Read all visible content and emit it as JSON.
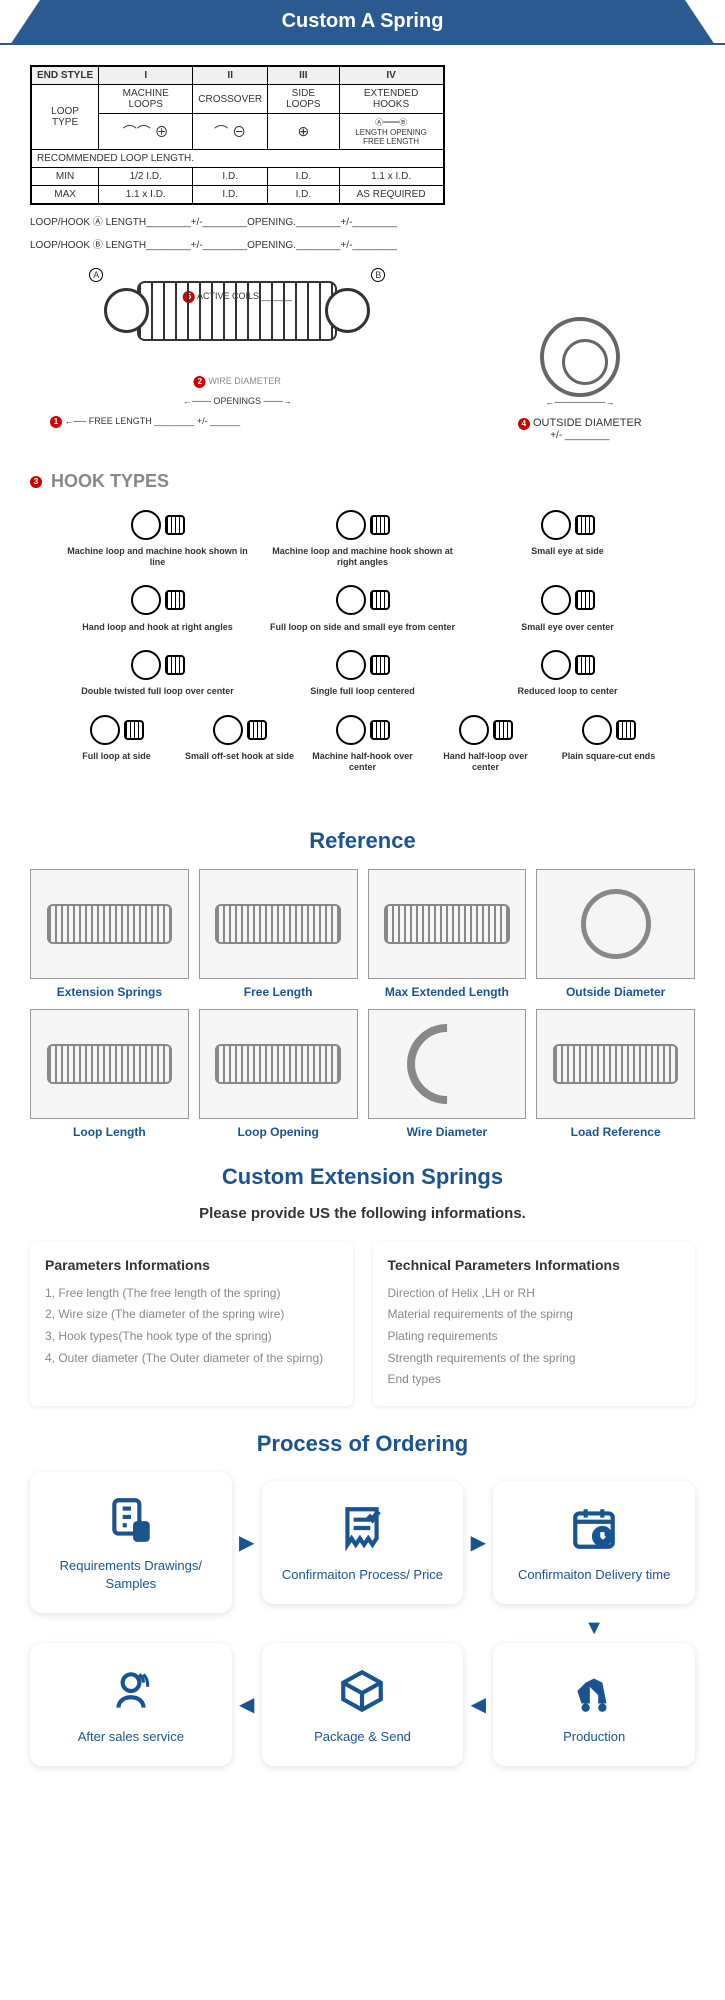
{
  "banner": {
    "title": "Custom A Spring"
  },
  "specTable": {
    "headers": [
      "END STYLE",
      "I",
      "II",
      "III",
      "IV"
    ],
    "subheaders": [
      "",
      "MACHINE LOOPS",
      "CROSSOVER",
      "SIDE LOOPS",
      "EXTENDED HOOKS"
    ],
    "loopType": "LOOP TYPE",
    "recommended": "RECOMMENDED LOOP LENGTH.",
    "rows": [
      [
        "MIN",
        "1/2 I.D.",
        "I.D.",
        "I.D.",
        "1.1 x I.D."
      ],
      [
        "MAX",
        "1.1 x I.D.",
        "I.D.",
        "I.D.",
        "AS REQUIRED"
      ]
    ],
    "extendedLabels": [
      "LENGTH",
      "OPENING",
      "FREE LENGTH"
    ]
  },
  "hookLines": [
    "LOOP/HOOK Ⓐ LENGTH________+/-________OPENING.________+/-________",
    "LOOP/HOOK Ⓑ LENGTH________+/-________OPENING.________+/-________"
  ],
  "diagram": {
    "activeCoils": "ACTIVE COILS ______",
    "wireDiameter": "WIRE DIAMETER",
    "openings": "OPENINGS",
    "freeLength": "FREE LENGTH ________ +/- ______",
    "a": "A",
    "b": "B"
  },
  "outsideDiameter": {
    "label": "OUTSIDE DIAMETER",
    "sublabel": "+/- ________",
    "num": "4"
  },
  "hookTypesTitle": "HOOK TYPES",
  "hookTypesNum": "3",
  "hookTypes": [
    [
      "Machine loop and machine hook shown in line",
      "Machine loop and machine hook shown at right angles",
      "Small eye at side"
    ],
    [
      "Hand loop and hook at right angles",
      "Full loop on side and small eye from center",
      "Small eye over center"
    ],
    [
      "Double twisted full loop over center",
      "Single full loop centered",
      "Reduced loop to center"
    ],
    [
      "Full loop at side",
      "Small off-set hook at side",
      "Machine half-hook over center",
      "Hand half-loop over center",
      "Plain square-cut ends"
    ]
  ],
  "reference": {
    "title": "Reference",
    "items": [
      "Extension Springs",
      "Free Length",
      "Max Extended Length",
      "Outside Diameter",
      "Loop Length",
      "Loop Opening",
      "Wire Diameter",
      "Load Reference"
    ]
  },
  "customSection": {
    "title": "Custom Extension Springs",
    "subtitle": "Please provide US the following informations."
  },
  "params": {
    "title": "Parameters Informations",
    "items": [
      "1,  Free length (The free length of the spring)",
      "2,  Wire size (The diameter of the spring wire)",
      "3,  Hook types(The hook type of the spring)",
      "4,  Outer diameter (The Outer diameter of the spirng)"
    ]
  },
  "techParams": {
    "title": "Technical Parameters Informations",
    "items": [
      "Direction of Helix ,LH or RH",
      "Material requirements of the spirng",
      "Plating requirements",
      "Strength requirements of the spring",
      "End types"
    ]
  },
  "process": {
    "title": "Process of Ordering",
    "steps": [
      "Requirements Drawings/ Samples",
      "Confirmaiton Process/ Price",
      "Confirmaiton Delivery time",
      "After sales service",
      "Package & Send",
      "Production"
    ]
  },
  "colors": {
    "primary": "#1a5490",
    "banner": "#2a5a8f",
    "red": "#c00",
    "gray": "#888"
  }
}
